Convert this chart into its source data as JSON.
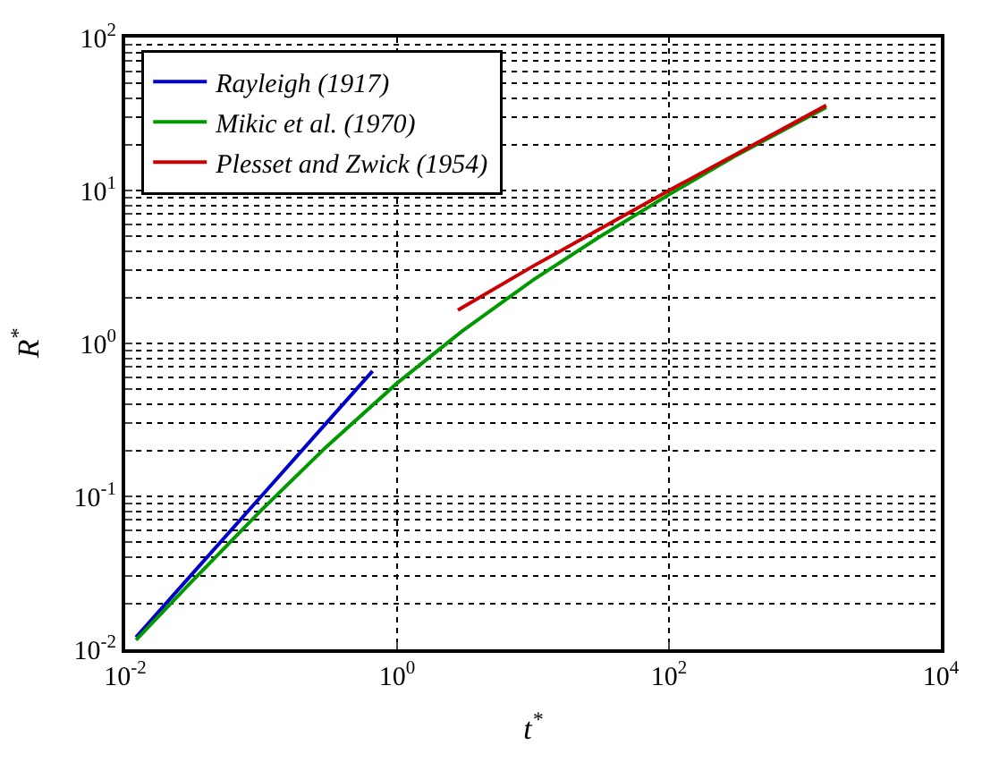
{
  "chart_data": {
    "type": "line",
    "xlabel": "t$^{*}$",
    "ylabel": "R$^{*}$",
    "log": "xy",
    "grid": true,
    "legend": "top left",
    "xlim": [
      0.01,
      10000
    ],
    "ylim": [
      0.01,
      100
    ],
    "xticks": [
      {
        "value": 0.01,
        "label": "10$^{-2}$"
      },
      {
        "value": 1,
        "label": "10$^{0}$"
      },
      {
        "value": 100,
        "label": "10$^{2}$"
      },
      {
        "value": 10000,
        "label": "10$^{4}$"
      }
    ],
    "yticks": [
      {
        "value": 0.01,
        "label": "10$^{-2}$"
      },
      {
        "value": 0.02,
        "label": null
      },
      {
        "value": 0.03,
        "label": null
      },
      {
        "value": 0.04,
        "label": null
      },
      {
        "value": 0.05,
        "label": null
      },
      {
        "value": 0.06,
        "label": null
      },
      {
        "value": 0.07,
        "label": null
      },
      {
        "value": 0.08,
        "label": null
      },
      {
        "value": 0.09,
        "label": null
      },
      {
        "value": 0.1,
        "label": "10$^{-1}$"
      },
      {
        "value": 0.2,
        "label": null
      },
      {
        "value": 0.3,
        "label": null
      },
      {
        "value": 0.4,
        "label": null
      },
      {
        "value": 0.5,
        "label": null
      },
      {
        "value": 0.6,
        "label": null
      },
      {
        "value": 0.7,
        "label": null
      },
      {
        "value": 0.8,
        "label": null
      },
      {
        "value": 0.9,
        "label": null
      },
      {
        "value": 1,
        "label": "10$^{0}$"
      },
      {
        "value": 2,
        "label": null
      },
      {
        "value": 3,
        "label": null
      },
      {
        "value": 4,
        "label": null
      },
      {
        "value": 5,
        "label": null
      },
      {
        "value": 6,
        "label": null
      },
      {
        "value": 7,
        "label": null
      },
      {
        "value": 8,
        "label": null
      },
      {
        "value": 9,
        "label": null
      },
      {
        "value": 10,
        "label": "10$^{1}$"
      },
      {
        "value": 20,
        "label": null
      },
      {
        "value": 30,
        "label": null
      },
      {
        "value": 40,
        "label": null
      },
      {
        "value": 50,
        "label": null
      },
      {
        "value": 60,
        "label": null
      },
      {
        "value": 70,
        "label": null
      },
      {
        "value": 80,
        "label": null
      },
      {
        "value": 90,
        "label": null
      },
      {
        "value": 100,
        "label": "10$^{2}$"
      }
    ],
    "series": [
      {
        "name": "Rayleigh (1917)",
        "color": "#0000cc",
        "x": [
          0.012,
          0.03,
          0.1,
          0.3,
          0.66
        ],
        "values": [
          0.012,
          0.03,
          0.1,
          0.3,
          0.66
        ]
      },
      {
        "name": "Mikic et al. (1970)",
        "color": "#009900",
        "x": [
          0.012,
          0.03,
          0.1,
          0.3,
          1,
          3,
          10,
          30,
          100,
          300,
          1435
        ],
        "values": [
          0.0115,
          0.027,
          0.081,
          0.21,
          0.55,
          1.2,
          2.6,
          4.9,
          9.4,
          16.6,
          35
        ]
      },
      {
        "name": "Plesset and Zwick (1954)",
        "color": "#cc0000",
        "x": [
          2.8,
          10,
          100,
          1435
        ],
        "values": [
          1.65,
          3.2,
          10,
          36
        ]
      }
    ]
  }
}
